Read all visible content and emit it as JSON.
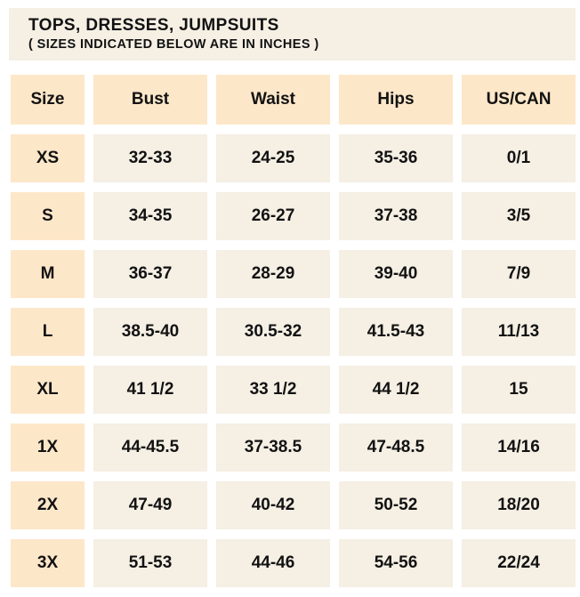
{
  "title": {
    "heading": "TOPS, DRESSES, JUMPSUITS",
    "subheading": "( SIZES INDICATED BELOW ARE IN INCHES )"
  },
  "table": {
    "headers": [
      "Size",
      "Bust",
      "Waist",
      "Hips",
      "US/CAN"
    ],
    "rows": [
      [
        "XS",
        "32-33",
        "24-25",
        "35-36",
        "0/1"
      ],
      [
        "S",
        "34-35",
        "26-27",
        "37-38",
        "3/5"
      ],
      [
        "M",
        "36-37",
        "28-29",
        "39-40",
        "7/9"
      ],
      [
        "L",
        "38.5-40",
        "30.5-32",
        "41.5-43",
        "11/13"
      ],
      [
        "XL",
        "41 1/2",
        "33 1/2",
        "44 1/2",
        "15"
      ],
      [
        "1X",
        "44-45.5",
        "37-38.5",
        "47-48.5",
        "14/16"
      ],
      [
        "2X",
        "47-49",
        "40-42",
        "50-52",
        "18/20"
      ],
      [
        "3X",
        "51-53",
        "44-46",
        "54-56",
        "22/24"
      ]
    ]
  },
  "chart_data": {
    "type": "table",
    "title": "TOPS, DRESSES, JUMPSUITS",
    "subtitle": "( SIZES INDICATED BELOW ARE IN INCHES )",
    "units": "inches",
    "columns": [
      "Size",
      "Bust",
      "Waist",
      "Hips",
      "US/CAN"
    ],
    "rows": [
      {
        "size": "XS",
        "bust": "32-33",
        "waist": "24-25",
        "hips": "35-36",
        "us_can": "0/1"
      },
      {
        "size": "S",
        "bust": "34-35",
        "waist": "26-27",
        "hips": "37-38",
        "us_can": "3/5"
      },
      {
        "size": "M",
        "bust": "36-37",
        "waist": "28-29",
        "hips": "39-40",
        "us_can": "7/9"
      },
      {
        "size": "L",
        "bust": "38.5-40",
        "waist": "30.5-32",
        "hips": "41.5-43",
        "us_can": "11/13"
      },
      {
        "size": "XL",
        "bust": "41 1/2",
        "waist": "33 1/2",
        "hips": "44 1/2",
        "us_can": "15"
      },
      {
        "size": "1X",
        "bust": "44-45.5",
        "waist": "37-38.5",
        "hips": "47-48.5",
        "us_can": "14/16"
      },
      {
        "size": "2X",
        "bust": "47-49",
        "waist": "40-42",
        "hips": "50-52",
        "us_can": "18/20"
      },
      {
        "size": "3X",
        "bust": "51-53",
        "waist": "44-46",
        "hips": "54-56",
        "us_can": "22/24"
      }
    ]
  },
  "colors": {
    "page_bg": "#ffffff",
    "title_block_bg": "#f5efe4",
    "header_cell_bg": "#fde7c9",
    "size_column_bg": "#fde7c9",
    "data_cell_bg": "#f5efe4",
    "text": "#121212"
  }
}
